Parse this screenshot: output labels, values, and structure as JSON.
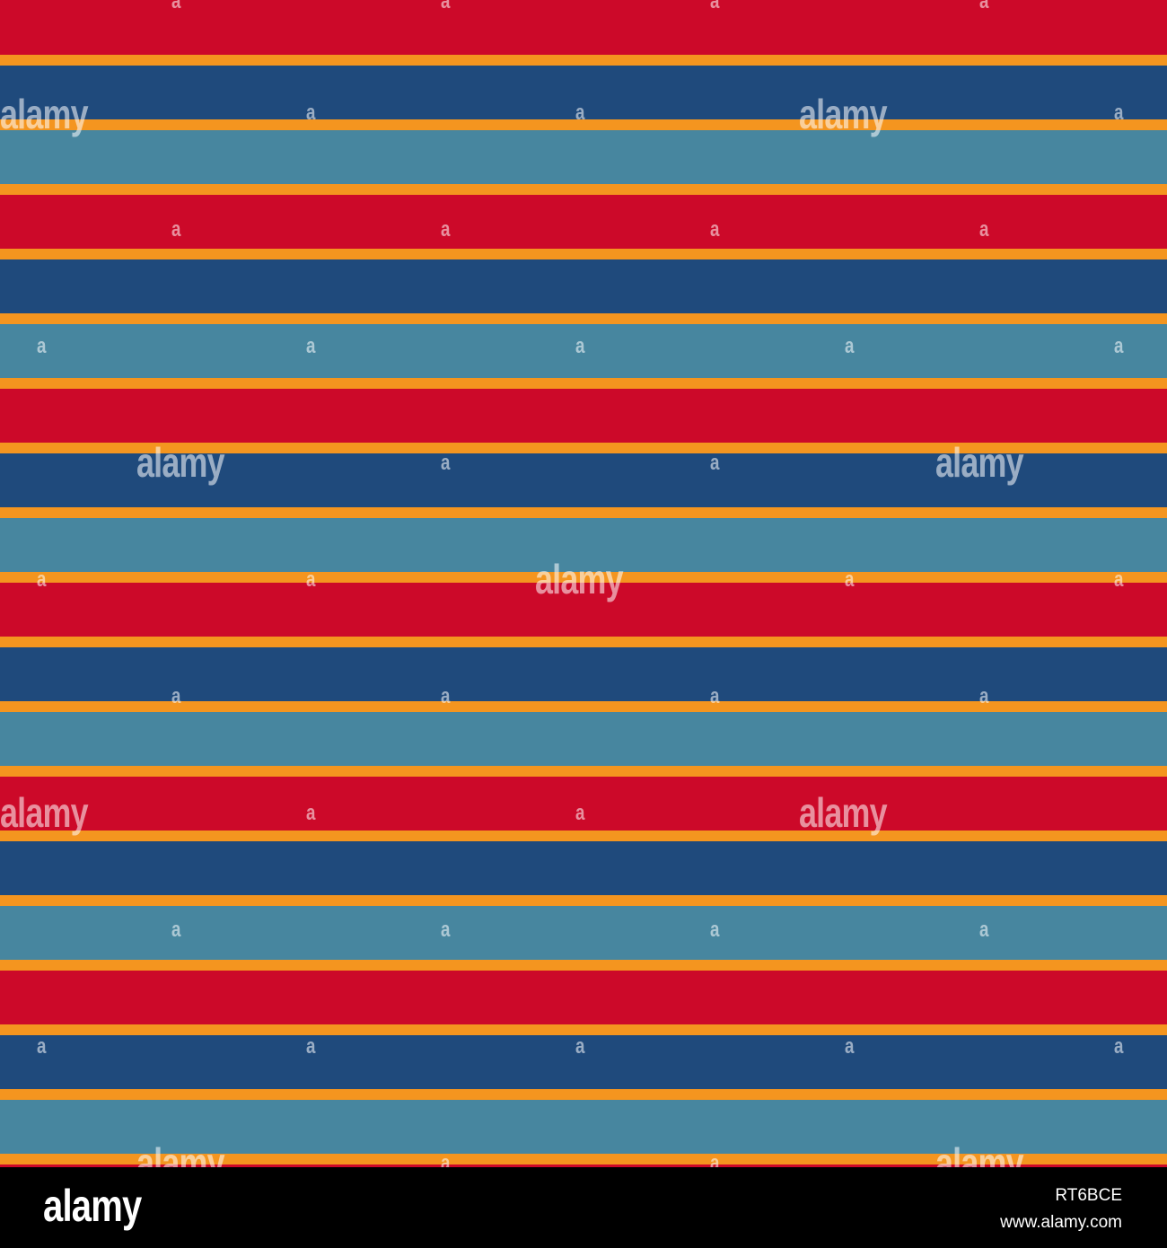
{
  "colors": {
    "red": "#cc0929",
    "navy": "#1f4a7c",
    "teal": "#47869f",
    "orange": "#f4951f",
    "footer": "#000000"
  },
  "stripe_sequence": [
    "red",
    "navy",
    "teal"
  ],
  "watermark": {
    "logo_text": "alamy",
    "mark_text": "a"
  },
  "footer": {
    "logo": "alamy",
    "image_id": "RT6BCE",
    "url": "www.alamy.com"
  }
}
